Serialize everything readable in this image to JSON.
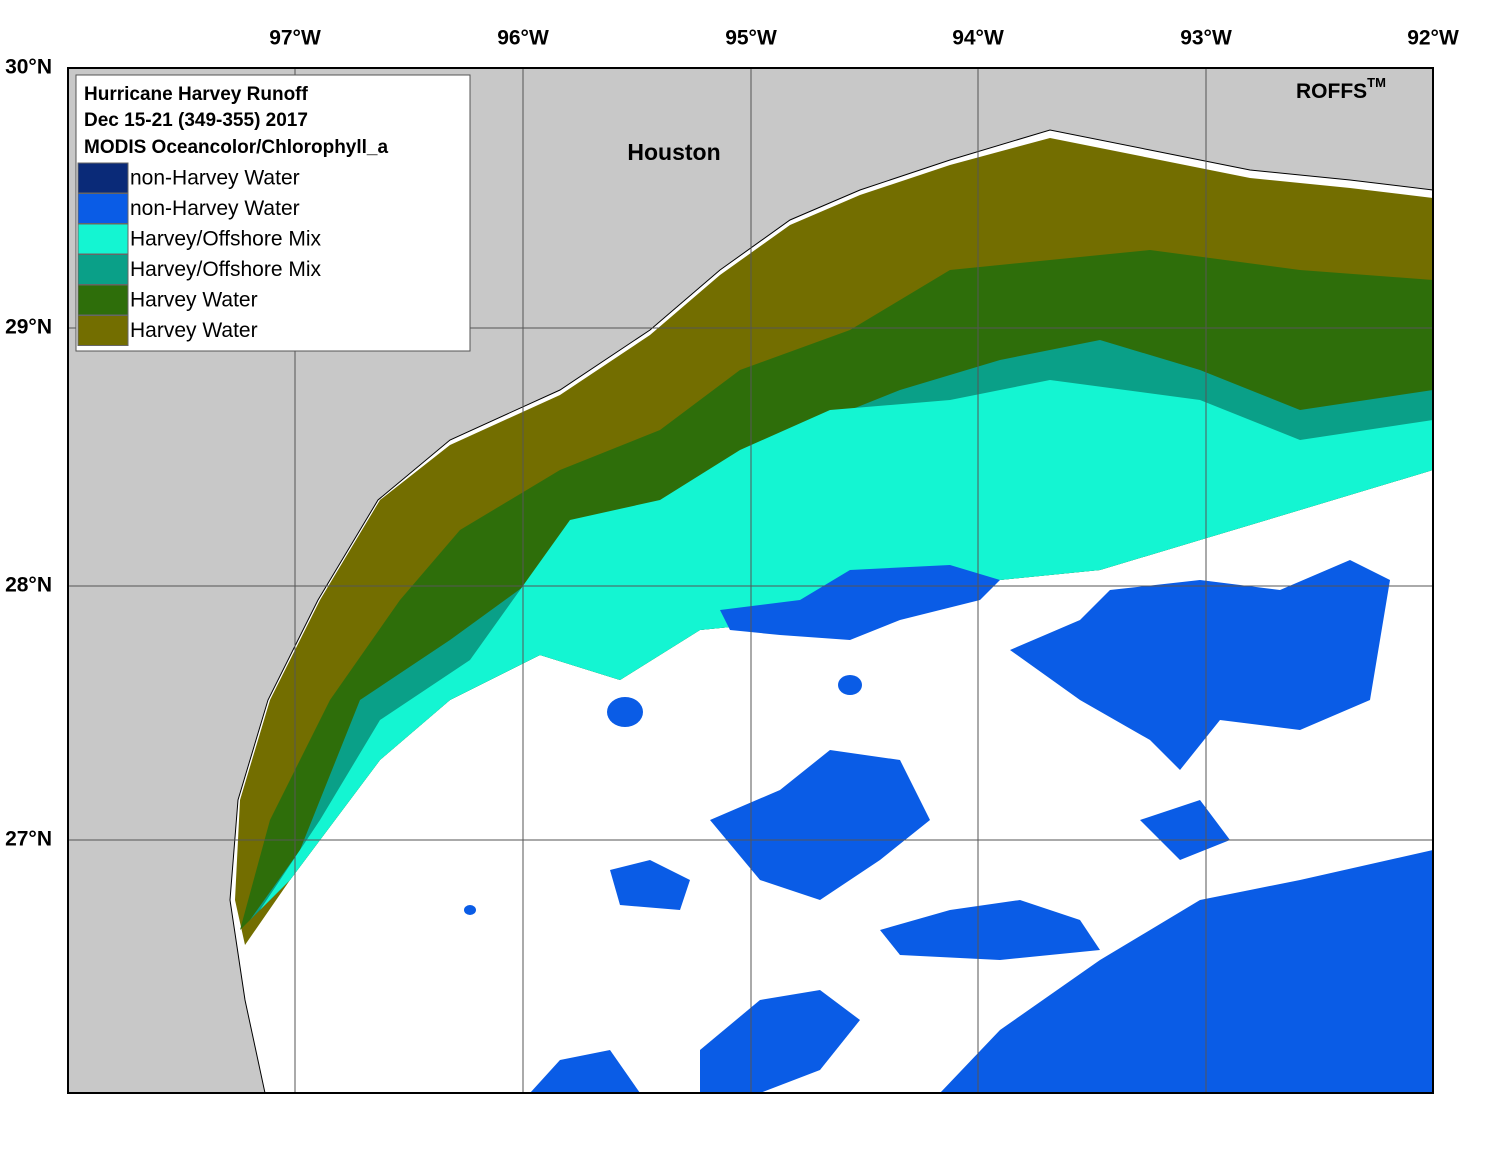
{
  "title": [
    "Hurricane Harvey Runoff",
    "Dec 15-21 (349-355) 2017",
    "MODIS Oceancolor/Chlorophyll_a"
  ],
  "legend": [
    {
      "label": "non-Harvey Water",
      "color": "#0a2a78"
    },
    {
      "label": "non-Harvey Water",
      "color": "#0a5ce6"
    },
    {
      "label": "Harvey/Offshore Mix",
      "color": "#14f5d2"
    },
    {
      "label": "Harvey/Offshore Mix",
      "color": "#0aa088"
    },
    {
      "label": "Harvey Water",
      "color": "#2e6e0a"
    },
    {
      "label": "Harvey Water",
      "color": "#736e00"
    }
  ],
  "lon_labels": [
    "97°W",
    "96°W",
    "95°W",
    "94°W",
    "93°W",
    "92°W"
  ],
  "lat_labels": [
    "30°N",
    "29°N",
    "28°N",
    "27°N"
  ],
  "place": "Houston",
  "brand": "ROFFS",
  "brand_mark": "TM"
}
